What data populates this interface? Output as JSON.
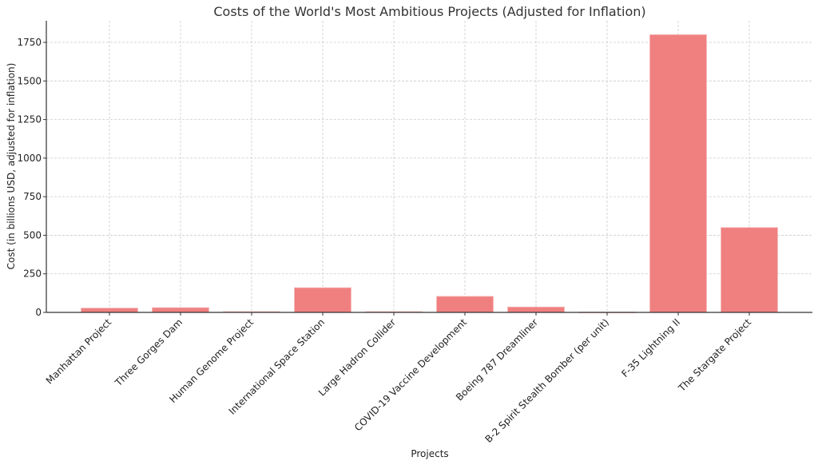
{
  "chart_data": {
    "type": "bar",
    "title": "Costs of the World's Most Ambitious Projects (Adjusted for Inflation)",
    "xlabel": "Projects",
    "ylabel": "Cost (in billions USD, adjusted for inflation)",
    "categories": [
      "Manhattan Project",
      "Three Gorges Dam",
      "Human Genome Project",
      "International Space Station",
      "Large Hadron Collider",
      "COVID-19 Vaccine Development",
      "Boeing 787 Dreamliner",
      "B-2 Spirit Stealth Bomber (per unit)",
      "F-35 Lightning II",
      "The Stargate Project"
    ],
    "values": [
      28,
      31,
      5,
      160,
      5,
      104,
      35,
      2,
      1800,
      550
    ],
    "ylim": [
      0,
      1890
    ],
    "yticks": [
      0,
      250,
      500,
      750,
      1000,
      1250,
      1500,
      1750
    ],
    "ytick_labels": [
      "0",
      "250",
      "500",
      "750",
      "1000",
      "1250",
      "1500",
      "1750"
    ],
    "grid": true,
    "bar_color": "#f08080",
    "xtick_rotation": 45
  }
}
